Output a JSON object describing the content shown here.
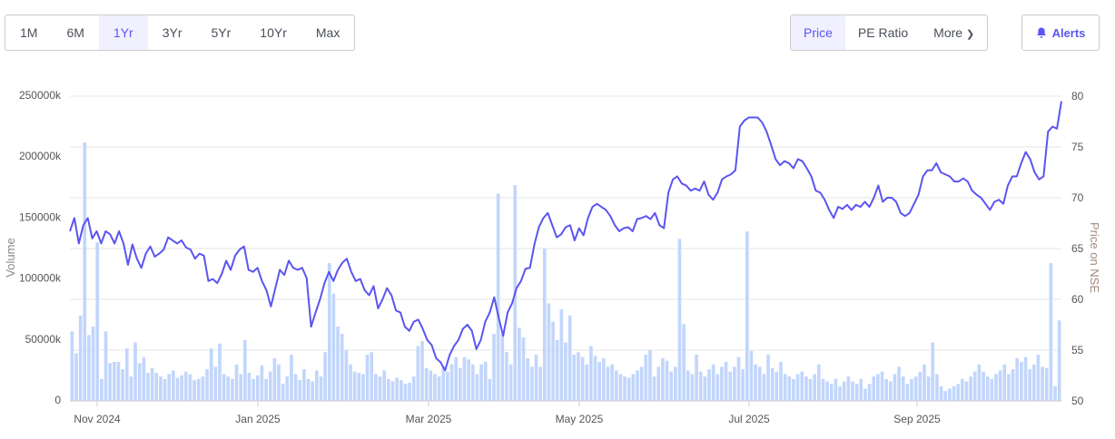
{
  "range_tabs": [
    "1M",
    "6M",
    "1Yr",
    "3Yr",
    "5Yr",
    "10Yr",
    "Max"
  ],
  "range_active": "1Yr",
  "view_tabs": {
    "price": "Price",
    "pe": "PE Ratio",
    "more": "More"
  },
  "view_active": "Price",
  "alerts_label": "Alerts",
  "colors": {
    "accent": "#5b55f0",
    "volume_bar": "#c2d6fc",
    "grid": "#e4e4e4"
  },
  "chart_data": {
    "type": "line+bar",
    "x_range": [
      "2024-10-21",
      "2025-10-20"
    ],
    "x_ticks": [
      "Nov 2024",
      "Jan 2025",
      "Mar 2025",
      "May 2025",
      "Jul 2025",
      "Sep 2025"
    ],
    "y_left": {
      "label": "Volume",
      "unit": "k",
      "ticks": [
        "0",
        "50000k",
        "100000k",
        "150000k",
        "200000k",
        "250000k"
      ],
      "range": [
        0,
        250000
      ]
    },
    "y_right": {
      "label": "Price on NSE",
      "ticks": [
        "50",
        "55",
        "60",
        "65",
        "70",
        "75",
        "80"
      ],
      "range": [
        50,
        80
      ]
    },
    "grid": true,
    "price": [
      66.7,
      68.0,
      65.5,
      67.3,
      68.0,
      66.0,
      66.7,
      65.5,
      66.7,
      66.4,
      65.5,
      66.7,
      65.5,
      63.4,
      65.4,
      64.0,
      63.1,
      64.5,
      65.2,
      64.2,
      64.5,
      64.9,
      66.1,
      65.8,
      65.5,
      65.8,
      65.1,
      64.9,
      64.0,
      64.5,
      64.3,
      61.8,
      62.0,
      61.6,
      62.5,
      63.8,
      62.9,
      64.3,
      64.9,
      65.2,
      62.9,
      62.7,
      63.1,
      61.8,
      60.9,
      59.3,
      61.1,
      62.9,
      62.4,
      63.8,
      63.1,
      62.9,
      63.1,
      62.1,
      57.3,
      58.7,
      60.0,
      61.6,
      62.7,
      61.8,
      62.9,
      63.6,
      64.0,
      62.7,
      61.8,
      62.0,
      60.9,
      60.4,
      61.3,
      59.1,
      60.0,
      61.1,
      60.4,
      58.9,
      58.7,
      57.3,
      56.9,
      57.8,
      58.0,
      57.1,
      56.0,
      55.5,
      54.2,
      53.8,
      53.0,
      54.5,
      55.4,
      56.0,
      57.1,
      57.5,
      56.9,
      55.1,
      56.0,
      57.8,
      58.7,
      60.2,
      58.2,
      56.4,
      58.7,
      59.6,
      61.1,
      61.8,
      63.0,
      63.1,
      65.4,
      67.1,
      68.0,
      68.5,
      67.3,
      66.1,
      66.4,
      67.1,
      67.3,
      65.8,
      67.0,
      66.3,
      68.0,
      69.1,
      69.4,
      69.1,
      68.8,
      68.2,
      67.3,
      66.7,
      67.0,
      67.1,
      66.7,
      67.9,
      68.0,
      68.2,
      67.9,
      68.5,
      67.3,
      67.0,
      70.5,
      71.8,
      72.1,
      71.4,
      71.2,
      70.7,
      70.9,
      70.7,
      71.6,
      70.3,
      69.8,
      70.5,
      71.8,
      72.1,
      72.3,
      72.7,
      77.0,
      77.6,
      77.9,
      77.9,
      77.9,
      77.4,
      76.5,
      75.2,
      73.8,
      73.2,
      73.6,
      73.4,
      72.9,
      73.8,
      73.6,
      72.9,
      72.1,
      70.7,
      70.5,
      69.8,
      68.8,
      68.0,
      69.1,
      68.9,
      69.3,
      68.8,
      69.3,
      69.1,
      69.6,
      69.1,
      70.0,
      71.2,
      69.6,
      70.0,
      70.0,
      69.6,
      68.5,
      68.2,
      68.5,
      69.4,
      70.3,
      72.1,
      72.7,
      72.7,
      73.4,
      72.5,
      72.3,
      72.1,
      71.6,
      71.6,
      71.9,
      71.6,
      70.7,
      70.3,
      70.0,
      69.4,
      68.8,
      69.6,
      69.8,
      69.4,
      71.2,
      72.1,
      72.1,
      73.4,
      74.5,
      73.8,
      72.5,
      71.8,
      72.1,
      76.5,
      77.0,
      76.8,
      79.5
    ],
    "volume": [
      57000,
      39000,
      70000,
      212000,
      54000,
      61000,
      130000,
      18000,
      57000,
      31000,
      32000,
      32000,
      26000,
      43000,
      20000,
      48000,
      31000,
      36000,
      23000,
      27000,
      23000,
      20000,
      18000,
      22000,
      25000,
      19000,
      21000,
      24000,
      22000,
      17000,
      18000,
      20000,
      26000,
      43000,
      28000,
      47000,
      22000,
      20000,
      18000,
      30000,
      22000,
      50000,
      23000,
      18000,
      21000,
      29000,
      18000,
      24000,
      35000,
      30000,
      14000,
      20000,
      38000,
      22000,
      17000,
      26000,
      18000,
      16000,
      25000,
      20000,
      40000,
      113000,
      88000,
      61000,
      55000,
      42000,
      30000,
      24000,
      23000,
      22000,
      38000,
      40000,
      22000,
      20000,
      25000,
      18000,
      16000,
      19000,
      17000,
      14000,
      15000,
      20000,
      45000,
      49000,
      27000,
      25000,
      22000,
      20000,
      28000,
      24000,
      30000,
      36000,
      27000,
      36000,
      34000,
      30000,
      22000,
      30000,
      32000,
      18000,
      55000,
      170000,
      55000,
      40000,
      30000,
      177000,
      60000,
      52000,
      35000,
      28000,
      38000,
      28000,
      125000,
      80000,
      65000,
      50000,
      75000,
      48000,
      70000,
      38000,
      40000,
      36000,
      30000,
      45000,
      37000,
      32000,
      35000,
      28000,
      30000,
      25000,
      22000,
      20000,
      19000,
      22000,
      25000,
      28000,
      38000,
      42000,
      20000,
      28000,
      35000,
      33000,
      24000,
      28000,
      133000,
      63000,
      25000,
      22000,
      38000,
      24000,
      20000,
      26000,
      30000,
      22000,
      28000,
      32000,
      24000,
      28000,
      36000,
      26000,
      139000,
      41000,
      30000,
      28000,
      22000,
      38000,
      27000,
      24000,
      32000,
      22000,
      20000,
      18000,
      22000,
      24000,
      20000,
      18000,
      22000,
      30000,
      18000,
      16000,
      14000,
      18000,
      12000,
      16000,
      20000,
      16000,
      14000,
      18000,
      10000,
      14000,
      20000,
      22000,
      24000,
      18000,
      16000,
      22000,
      28000,
      20000,
      14000,
      18000,
      20000,
      24000,
      30000,
      20000,
      48000,
      22000,
      12000,
      8000,
      10000,
      12000,
      14000,
      18000,
      16000,
      20000,
      24000,
      30000,
      24000,
      20000,
      18000,
      22000,
      25000,
      30000,
      22000,
      26000,
      35000,
      32000,
      36000,
      26000,
      30000,
      38000,
      28000,
      27000,
      113000,
      12000,
      66000
    ]
  }
}
